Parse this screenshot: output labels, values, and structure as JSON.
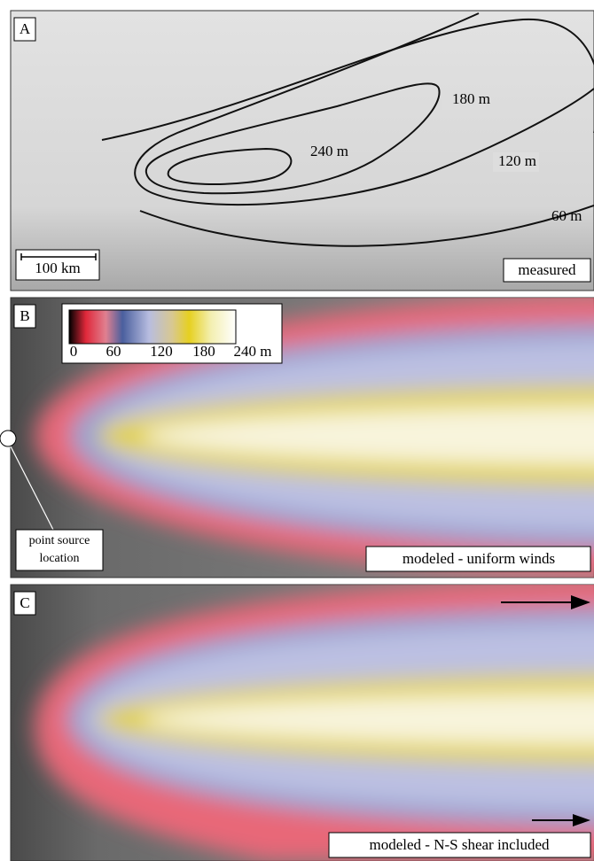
{
  "panels": [
    {
      "label": "A",
      "contours": [
        "180 m",
        "240 m",
        "120 m",
        "60 m"
      ],
      "scale": "100 km",
      "caption": "measured"
    },
    {
      "label": "B",
      "colorbar_ticks": [
        "0",
        "60",
        "120",
        "180",
        "240 m"
      ],
      "point_source": [
        "point source",
        "location"
      ],
      "caption": "modeled - uniform winds"
    },
    {
      "label": "C",
      "caption": "modeled - N-S shear included"
    }
  ]
}
